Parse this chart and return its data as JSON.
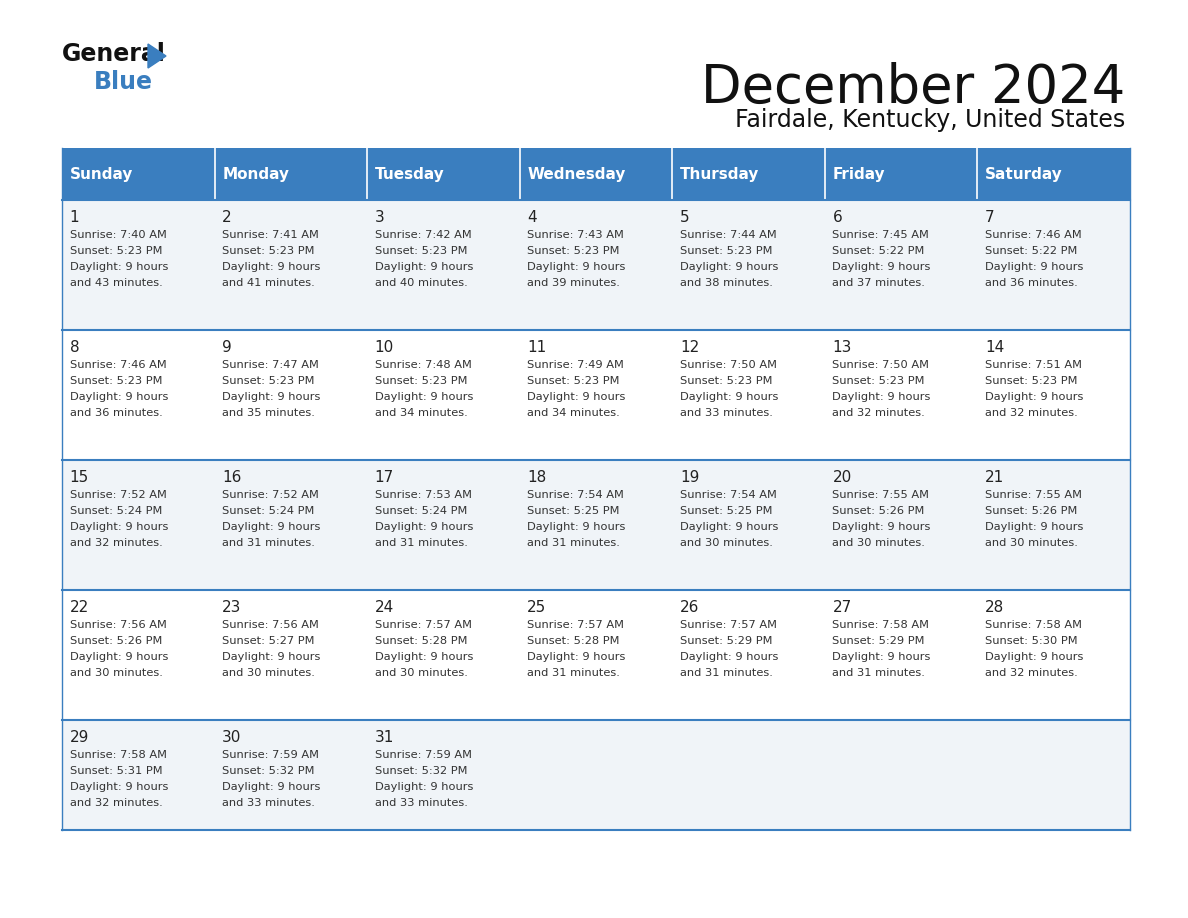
{
  "title": "December 2024",
  "subtitle": "Fairdale, Kentucky, United States",
  "header_color": "#3a7ebf",
  "header_text_color": "#ffffff",
  "row_bg_colors": [
    "#f0f4f8",
    "#ffffff"
  ],
  "border_color": "#3a7ebf",
  "text_color": "#333333",
  "day_num_color": "#222222",
  "days_of_week": [
    "Sunday",
    "Monday",
    "Tuesday",
    "Wednesday",
    "Thursday",
    "Friday",
    "Saturday"
  ],
  "calendar": [
    [
      {
        "day": 1,
        "sunrise": "7:40 AM",
        "sunset": "5:23 PM",
        "daylight": "9 hours and 43 minutes."
      },
      {
        "day": 2,
        "sunrise": "7:41 AM",
        "sunset": "5:23 PM",
        "daylight": "9 hours and 41 minutes."
      },
      {
        "day": 3,
        "sunrise": "7:42 AM",
        "sunset": "5:23 PM",
        "daylight": "9 hours and 40 minutes."
      },
      {
        "day": 4,
        "sunrise": "7:43 AM",
        "sunset": "5:23 PM",
        "daylight": "9 hours and 39 minutes."
      },
      {
        "day": 5,
        "sunrise": "7:44 AM",
        "sunset": "5:23 PM",
        "daylight": "9 hours and 38 minutes."
      },
      {
        "day": 6,
        "sunrise": "7:45 AM",
        "sunset": "5:22 PM",
        "daylight": "9 hours and 37 minutes."
      },
      {
        "day": 7,
        "sunrise": "7:46 AM",
        "sunset": "5:22 PM",
        "daylight": "9 hours and 36 minutes."
      }
    ],
    [
      {
        "day": 8,
        "sunrise": "7:46 AM",
        "sunset": "5:23 PM",
        "daylight": "9 hours and 36 minutes."
      },
      {
        "day": 9,
        "sunrise": "7:47 AM",
        "sunset": "5:23 PM",
        "daylight": "9 hours and 35 minutes."
      },
      {
        "day": 10,
        "sunrise": "7:48 AM",
        "sunset": "5:23 PM",
        "daylight": "9 hours and 34 minutes."
      },
      {
        "day": 11,
        "sunrise": "7:49 AM",
        "sunset": "5:23 PM",
        "daylight": "9 hours and 34 minutes."
      },
      {
        "day": 12,
        "sunrise": "7:50 AM",
        "sunset": "5:23 PM",
        "daylight": "9 hours and 33 minutes."
      },
      {
        "day": 13,
        "sunrise": "7:50 AM",
        "sunset": "5:23 PM",
        "daylight": "9 hours and 32 minutes."
      },
      {
        "day": 14,
        "sunrise": "7:51 AM",
        "sunset": "5:23 PM",
        "daylight": "9 hours and 32 minutes."
      }
    ],
    [
      {
        "day": 15,
        "sunrise": "7:52 AM",
        "sunset": "5:24 PM",
        "daylight": "9 hours and 32 minutes."
      },
      {
        "day": 16,
        "sunrise": "7:52 AM",
        "sunset": "5:24 PM",
        "daylight": "9 hours and 31 minutes."
      },
      {
        "day": 17,
        "sunrise": "7:53 AM",
        "sunset": "5:24 PM",
        "daylight": "9 hours and 31 minutes."
      },
      {
        "day": 18,
        "sunrise": "7:54 AM",
        "sunset": "5:25 PM",
        "daylight": "9 hours and 31 minutes."
      },
      {
        "day": 19,
        "sunrise": "7:54 AM",
        "sunset": "5:25 PM",
        "daylight": "9 hours and 30 minutes."
      },
      {
        "day": 20,
        "sunrise": "7:55 AM",
        "sunset": "5:26 PM",
        "daylight": "9 hours and 30 minutes."
      },
      {
        "day": 21,
        "sunrise": "7:55 AM",
        "sunset": "5:26 PM",
        "daylight": "9 hours and 30 minutes."
      }
    ],
    [
      {
        "day": 22,
        "sunrise": "7:56 AM",
        "sunset": "5:26 PM",
        "daylight": "9 hours and 30 minutes."
      },
      {
        "day": 23,
        "sunrise": "7:56 AM",
        "sunset": "5:27 PM",
        "daylight": "9 hours and 30 minutes."
      },
      {
        "day": 24,
        "sunrise": "7:57 AM",
        "sunset": "5:28 PM",
        "daylight": "9 hours and 30 minutes."
      },
      {
        "day": 25,
        "sunrise": "7:57 AM",
        "sunset": "5:28 PM",
        "daylight": "9 hours and 31 minutes."
      },
      {
        "day": 26,
        "sunrise": "7:57 AM",
        "sunset": "5:29 PM",
        "daylight": "9 hours and 31 minutes."
      },
      {
        "day": 27,
        "sunrise": "7:58 AM",
        "sunset": "5:29 PM",
        "daylight": "9 hours and 31 minutes."
      },
      {
        "day": 28,
        "sunrise": "7:58 AM",
        "sunset": "5:30 PM",
        "daylight": "9 hours and 32 minutes."
      }
    ],
    [
      {
        "day": 29,
        "sunrise": "7:58 AM",
        "sunset": "5:31 PM",
        "daylight": "9 hours and 32 minutes."
      },
      {
        "day": 30,
        "sunrise": "7:59 AM",
        "sunset": "5:32 PM",
        "daylight": "9 hours and 33 minutes."
      },
      {
        "day": 31,
        "sunrise": "7:59 AM",
        "sunset": "5:32 PM",
        "daylight": "9 hours and 33 minutes."
      },
      null,
      null,
      null,
      null
    ]
  ]
}
